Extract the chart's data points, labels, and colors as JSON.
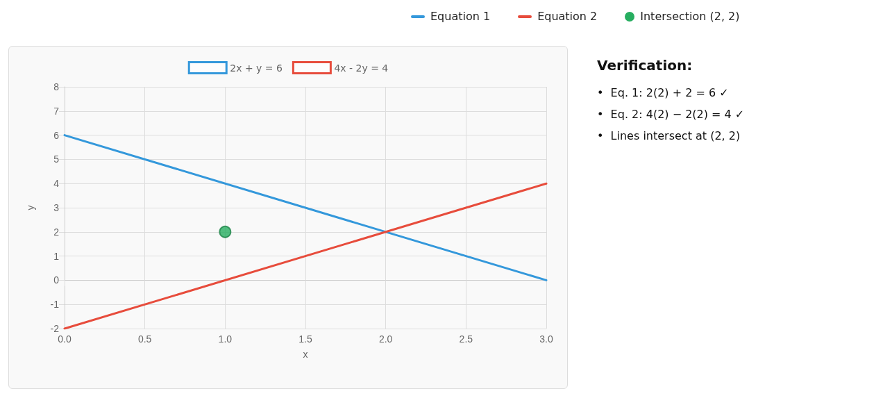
{
  "chart_data": [
    {
      "type": "line",
      "xlabel": "x",
      "ylabel": "y",
      "xlim": [
        0,
        3
      ],
      "xticks": [
        {
          "value": 0,
          "label": "0.0"
        },
        {
          "value": 0.5,
          "label": "0.5"
        },
        {
          "value": 1,
          "label": "1.0"
        },
        {
          "value": 1.5,
          "label": "1.5"
        },
        {
          "value": 2,
          "label": "2.0"
        },
        {
          "value": 2.5,
          "label": "2.5"
        },
        {
          "value": 3,
          "label": "3.0"
        }
      ],
      "ylim": [
        -2,
        8
      ],
      "yticks": [
        -2,
        -1,
        0,
        1,
        2,
        3,
        4,
        5,
        6,
        7,
        8
      ],
      "grid": true,
      "legend": "top",
      "marker": "none",
      "line_style": "solid",
      "series": [
        {
          "name": "2x + y = 6",
          "color": "#3498db",
          "x": [
            0,
            3
          ],
          "values": [
            6,
            0
          ]
        },
        {
          "name": "4x - 2y = 4",
          "color": "#e74c3c",
          "x": [
            0,
            3
          ],
          "values": [
            -2,
            4
          ]
        },
        {
          "type": "scatter",
          "color": "#27ae60",
          "x": [
            1
          ],
          "values": [
            2
          ],
          "marker": "circle"
        }
      ],
      "annotations": [
        "Equation 1",
        "Equation 2",
        "Intersection (2, 2)"
      ]
    },
    {
      "type": "other",
      "title": "Verification:",
      "annotations": [
        "•  Eq. 1: 2(2) + 2 = 6 ✓",
        "•  Eq. 2: 4(2) − 2(2) = 4 ✓",
        "•  Lines intersect at (2, 2)"
      ]
    }
  ]
}
